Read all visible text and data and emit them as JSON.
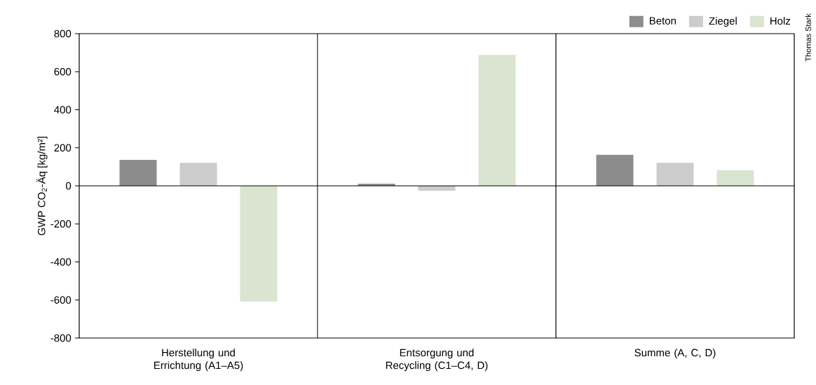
{
  "chart_data": {
    "type": "bar",
    "ylabel": "GWP CO$_{2}$-Äq [kg/m²]",
    "categories": [
      "Herstellung und Errichtung (A1–A5)",
      "Entsorgung und Recycling (C1–C4, D)",
      "Summe (A, C, D)"
    ],
    "series": [
      {
        "name": "Beton",
        "color": "#8c8c8c",
        "values": [
          136,
          11,
          163
        ]
      },
      {
        "name": "Ziegel",
        "color": "#cccccc",
        "values": [
          121,
          -26,
          121
        ]
      },
      {
        "name": "Holz",
        "color": "#d9e5d0",
        "values": [
          -608,
          688,
          82
        ]
      }
    ],
    "ylim": [
      -800,
      800
    ],
    "yticks": [
      -800,
      -600,
      -400,
      -200,
      0,
      200,
      400,
      600,
      800
    ],
    "legend": "top right",
    "annotations": [
      "Thomas Stark"
    ]
  }
}
